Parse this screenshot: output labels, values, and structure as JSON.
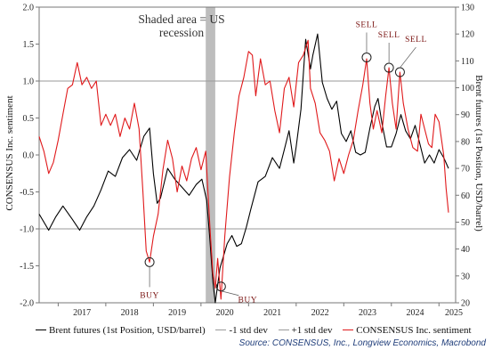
{
  "chart_data": {
    "type": "line",
    "left_axis_label": "CONSENSUS Inc. sentiment",
    "right_axis_label": "Brent futures (1st Position, USD/barrel)",
    "left_ylim": [
      -2.0,
      2.0
    ],
    "left_ticks": [
      "2.0",
      "1.5",
      "1.0",
      "0.5",
      "0.0",
      "-0.5",
      "-1.0",
      "-1.5",
      "-2.0"
    ],
    "right_ylim": [
      20,
      130
    ],
    "right_ticks": [
      "130",
      "120",
      "110",
      "100",
      "90",
      "80",
      "70",
      "60",
      "50",
      "40",
      "30",
      "20"
    ],
    "x_ticks": [
      "2017",
      "2018",
      "2019",
      "2020",
      "2021",
      "2022",
      "2023",
      "2024",
      "2025"
    ],
    "recession": {
      "label_line1": "Shaded area = US",
      "label_line2": "recession",
      "start": 2020.1,
      "end": 2020.3
    },
    "std_dev_lines": {
      "minus": -1.0,
      "plus": 1.0
    },
    "series": [
      {
        "name": "Brent futures (1st Position, USD/barrel)",
        "axis": "right",
        "color": "#000000",
        "points": [
          [
            2016.6,
            53
          ],
          [
            2016.8,
            47
          ],
          [
            2016.95,
            52
          ],
          [
            2017.1,
            56
          ],
          [
            2017.3,
            51
          ],
          [
            2017.45,
            47
          ],
          [
            2017.6,
            52
          ],
          [
            2017.75,
            56
          ],
          [
            2017.9,
            62
          ],
          [
            2018.05,
            69
          ],
          [
            2018.2,
            67
          ],
          [
            2018.35,
            74
          ],
          [
            2018.5,
            77
          ],
          [
            2018.65,
            73
          ],
          [
            2018.8,
            82
          ],
          [
            2018.92,
            85
          ],
          [
            2019.0,
            68
          ],
          [
            2019.08,
            57
          ],
          [
            2019.15,
            59
          ],
          [
            2019.3,
            70
          ],
          [
            2019.45,
            66
          ],
          [
            2019.6,
            63
          ],
          [
            2019.75,
            60
          ],
          [
            2019.9,
            64
          ],
          [
            2020.02,
            66
          ],
          [
            2020.12,
            58
          ],
          [
            2020.18,
            45
          ],
          [
            2020.25,
            28
          ],
          [
            2020.3,
            20
          ],
          [
            2020.4,
            33
          ],
          [
            2020.55,
            42
          ],
          [
            2020.65,
            45
          ],
          [
            2020.75,
            41
          ],
          [
            2020.85,
            42
          ],
          [
            2020.95,
            48
          ],
          [
            2021.05,
            55
          ],
          [
            2021.2,
            65
          ],
          [
            2021.35,
            67
          ],
          [
            2021.5,
            74
          ],
          [
            2021.65,
            70
          ],
          [
            2021.75,
            77
          ],
          [
            2021.85,
            84
          ],
          [
            2021.95,
            72
          ],
          [
            2022.0,
            78
          ],
          [
            2022.1,
            92
          ],
          [
            2022.2,
            118
          ],
          [
            2022.3,
            107
          ],
          [
            2022.35,
            112
          ],
          [
            2022.45,
            120
          ],
          [
            2022.55,
            102
          ],
          [
            2022.65,
            96
          ],
          [
            2022.75,
            92
          ],
          [
            2022.85,
            95
          ],
          [
            2022.95,
            83
          ],
          [
            2023.05,
            80
          ],
          [
            2023.15,
            84
          ],
          [
            2023.25,
            76
          ],
          [
            2023.35,
            75
          ],
          [
            2023.45,
            76
          ],
          [
            2023.55,
            85
          ],
          [
            2023.65,
            93
          ],
          [
            2023.72,
            96
          ],
          [
            2023.8,
            87
          ],
          [
            2023.9,
            78
          ],
          [
            2024.0,
            78
          ],
          [
            2024.1,
            83
          ],
          [
            2024.2,
            90
          ],
          [
            2024.3,
            84
          ],
          [
            2024.4,
            81
          ],
          [
            2024.5,
            86
          ],
          [
            2024.6,
            79
          ],
          [
            2024.7,
            72
          ],
          [
            2024.8,
            75
          ],
          [
            2024.9,
            72
          ],
          [
            2025.0,
            77
          ],
          [
            2025.1,
            74
          ],
          [
            2025.2,
            70
          ]
        ]
      },
      {
        "name": "-1 std dev",
        "axis": "left",
        "color": "#999999"
      },
      {
        "name": "+1 std dev",
        "axis": "left",
        "color": "#999999"
      },
      {
        "name": "CONSENSUS Inc. sentiment",
        "axis": "left",
        "color": "#e0191b",
        "points": [
          [
            2016.6,
            0.25
          ],
          [
            2016.7,
            0.05
          ],
          [
            2016.8,
            -0.25
          ],
          [
            2016.9,
            -0.1
          ],
          [
            2017.0,
            0.2
          ],
          [
            2017.1,
            0.55
          ],
          [
            2017.2,
            0.9
          ],
          [
            2017.3,
            0.95
          ],
          [
            2017.4,
            1.25
          ],
          [
            2017.5,
            0.95
          ],
          [
            2017.6,
            1.05
          ],
          [
            2017.7,
            0.9
          ],
          [
            2017.8,
            1.0
          ],
          [
            2017.9,
            0.4
          ],
          [
            2018.0,
            0.55
          ],
          [
            2018.1,
            0.4
          ],
          [
            2018.2,
            0.55
          ],
          [
            2018.3,
            0.25
          ],
          [
            2018.4,
            0.5
          ],
          [
            2018.5,
            0.35
          ],
          [
            2018.6,
            0.7
          ],
          [
            2018.7,
            0.35
          ],
          [
            2018.78,
            -0.5
          ],
          [
            2018.85,
            -1.3
          ],
          [
            2018.92,
            -1.45
          ],
          [
            2019.0,
            -1.1
          ],
          [
            2019.1,
            -0.8
          ],
          [
            2019.2,
            -0.2
          ],
          [
            2019.3,
            0.2
          ],
          [
            2019.4,
            -0.05
          ],
          [
            2019.5,
            -0.5
          ],
          [
            2019.6,
            -0.15
          ],
          [
            2019.7,
            -0.35
          ],
          [
            2019.8,
            -0.05
          ],
          [
            2019.9,
            0.1
          ],
          [
            2020.0,
            -0.2
          ],
          [
            2020.1,
            0.05
          ],
          [
            2020.15,
            -0.55
          ],
          [
            2020.2,
            -1.1
          ],
          [
            2020.25,
            -1.6
          ],
          [
            2020.3,
            -1.8
          ],
          [
            2020.35,
            -1.4
          ],
          [
            2020.42,
            -1.95
          ],
          [
            2020.5,
            -1.1
          ],
          [
            2020.6,
            -0.3
          ],
          [
            2020.7,
            0.3
          ],
          [
            2020.8,
            0.8
          ],
          [
            2020.9,
            1.05
          ],
          [
            2021.0,
            1.4
          ],
          [
            2021.08,
            1.35
          ],
          [
            2021.15,
            0.8
          ],
          [
            2021.25,
            1.3
          ],
          [
            2021.35,
            0.95
          ],
          [
            2021.45,
            1.0
          ],
          [
            2021.55,
            0.6
          ],
          [
            2021.65,
            0.3
          ],
          [
            2021.75,
            0.9
          ],
          [
            2021.85,
            1.05
          ],
          [
            2021.95,
            0.65
          ],
          [
            2022.05,
            1.25
          ],
          [
            2022.15,
            1.35
          ],
          [
            2022.25,
            1.55
          ],
          [
            2022.3,
            0.9
          ],
          [
            2022.4,
            0.7
          ],
          [
            2022.5,
            0.3
          ],
          [
            2022.6,
            0.2
          ],
          [
            2022.7,
            0.05
          ],
          [
            2022.8,
            -0.35
          ],
          [
            2022.9,
            -0.05
          ],
          [
            2023.0,
            -0.25
          ],
          [
            2023.1,
            0.0
          ],
          [
            2023.2,
            0.2
          ],
          [
            2023.3,
            0.6
          ],
          [
            2023.4,
            0.95
          ],
          [
            2023.48,
            1.3
          ],
          [
            2023.55,
            0.7
          ],
          [
            2023.62,
            0.35
          ],
          [
            2023.7,
            0.6
          ],
          [
            2023.8,
            0.3
          ],
          [
            2023.88,
            0.8
          ],
          [
            2023.95,
            1.18
          ],
          [
            2024.02,
            0.7
          ],
          [
            2024.1,
            0.35
          ],
          [
            2024.18,
            1.12
          ],
          [
            2024.25,
            0.7
          ],
          [
            2024.35,
            0.35
          ],
          [
            2024.45,
            0.1
          ],
          [
            2024.55,
            0.05
          ],
          [
            2024.62,
            0.55
          ],
          [
            2024.7,
            0.35
          ],
          [
            2024.78,
            0.15
          ],
          [
            2024.85,
            0.1
          ],
          [
            2024.92,
            0.55
          ],
          [
            2025.0,
            0.45
          ],
          [
            2025.1,
            0.0
          ],
          [
            2025.15,
            -0.45
          ],
          [
            2025.2,
            -0.78
          ]
        ]
      }
    ],
    "annotations": [
      {
        "label": "BUY",
        "x": 2018.92,
        "y": -1.45
      },
      {
        "label": "BUY",
        "x": 2020.42,
        "y": -1.78
      },
      {
        "label": "SELL",
        "x": 2023.48,
        "y": 1.32
      },
      {
        "label": "SELL",
        "x": 2023.95,
        "y": 1.18
      },
      {
        "label": "SELL",
        "x": 2024.18,
        "y": 1.12
      }
    ],
    "grid": false,
    "legend_position": "bottom"
  },
  "legend": {
    "brent": "Brent futures (1st Position, USD/barrel)",
    "minus_std": "-1 std dev",
    "plus_std": "+1 std dev",
    "sentiment": "CONSENSUS Inc. sentiment"
  },
  "source": "Source: CONSENSUS, Inc., Longview Economics, Macrobond"
}
